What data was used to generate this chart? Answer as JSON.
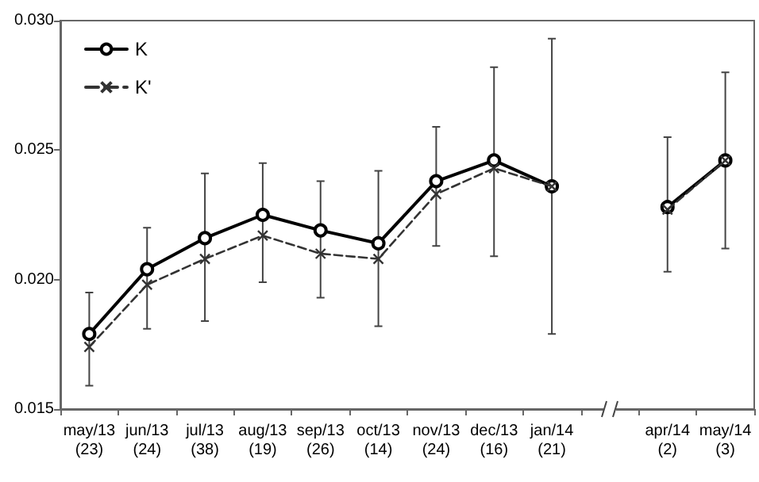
{
  "chart_data": {
    "type": "line",
    "categories": [
      "may/13\n(23)",
      "jun/13\n(24)",
      "jul/13\n(38)",
      "aug/13\n(19)",
      "sep/13\n(26)",
      "oct/13\n(14)",
      "nov/13\n(24)",
      "dec/13\n(16)",
      "jan/14\n(21)",
      null,
      "apr/14\n(2)",
      "may/14\n(3)"
    ],
    "series": [
      {
        "name": "K",
        "color": "#000000",
        "marker": "circle",
        "line_style": "solid",
        "values": [
          0.0179,
          0.0204,
          0.0216,
          0.0225,
          0.0219,
          0.0214,
          0.0238,
          0.0246,
          0.0236,
          null,
          0.0228,
          0.0246
        ],
        "errors": [
          [
            0.0159,
            0.0195
          ],
          [
            0.0181,
            0.022
          ],
          [
            0.0184,
            0.0241
          ],
          [
            0.0199,
            0.0245
          ],
          [
            0.0193,
            0.0238
          ],
          [
            0.0182,
            0.0242
          ],
          [
            0.0213,
            0.0259
          ],
          [
            0.0209,
            0.0282
          ],
          [
            0.0179,
            0.0293
          ],
          null,
          [
            0.0203,
            0.0255
          ],
          [
            0.0212,
            0.028
          ]
        ]
      },
      {
        "name": "K'",
        "color": "#333333",
        "marker": "cross",
        "line_style": "dashed",
        "values": [
          0.0174,
          0.0198,
          0.0208,
          0.0217,
          0.021,
          0.0208,
          0.0233,
          0.0243,
          0.0236,
          null,
          0.0227,
          0.0246
        ]
      }
    ],
    "ylim": [
      0.015,
      0.03
    ],
    "yticks": [
      {
        "value": 0.015,
        "label": "0.015"
      },
      {
        "value": 0.02,
        "label": "0.020"
      },
      {
        "value": 0.025,
        "label": "0.025"
      },
      {
        "value": 0.03,
        "label": "0.030"
      }
    ],
    "grid": false,
    "legend": "top left"
  }
}
